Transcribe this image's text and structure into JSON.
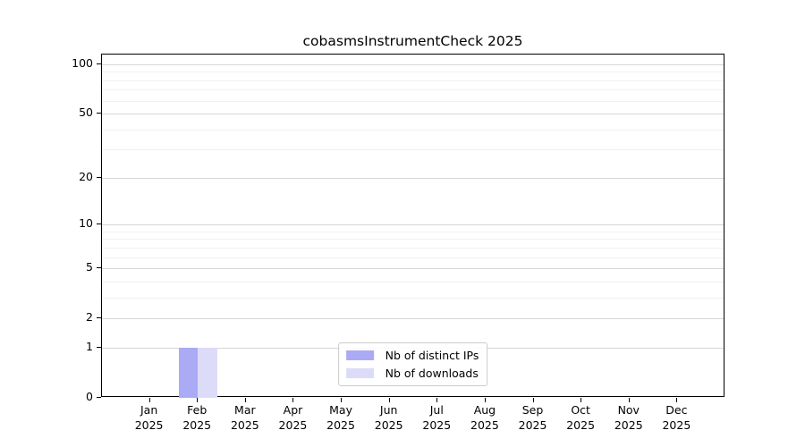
{
  "chart_data": {
    "type": "bar",
    "title": "cobasmsInstrumentCheck 2025",
    "categories": [
      "Jan",
      "Feb",
      "Mar",
      "Apr",
      "May",
      "Jun",
      "Jul",
      "Aug",
      "Sep",
      "Oct",
      "Nov",
      "Dec"
    ],
    "year_label": "2025",
    "series": [
      {
        "name": "Nb of distinct IPs",
        "color": "#aaaaf5",
        "values": [
          0,
          1,
          0,
          0,
          0,
          0,
          0,
          0,
          0,
          0,
          0,
          0
        ]
      },
      {
        "name": "Nb of downloads",
        "color": "#dcdcf8",
        "values": [
          0,
          1,
          0,
          0,
          0,
          0,
          0,
          0,
          0,
          0,
          0,
          0
        ]
      }
    ],
    "xlabel": "",
    "ylabel": "",
    "yscale": "log10(1+y)",
    "ylim": [
      0,
      115
    ],
    "yticks_major": [
      0,
      1,
      2,
      5,
      10,
      20,
      50,
      100
    ],
    "yticks_minor": [
      3,
      4,
      6,
      7,
      8,
      9,
      30,
      40,
      60,
      70,
      80,
      90
    ],
    "grid": "horizontal",
    "legend_position": "lower center"
  },
  "colors": {
    "background": "#ffffff",
    "axis": "#000000",
    "major_grid": "#d6d6d6",
    "minor_grid": "#f0f0f0",
    "legend_border": "#cccccc",
    "text": "#000000"
  }
}
